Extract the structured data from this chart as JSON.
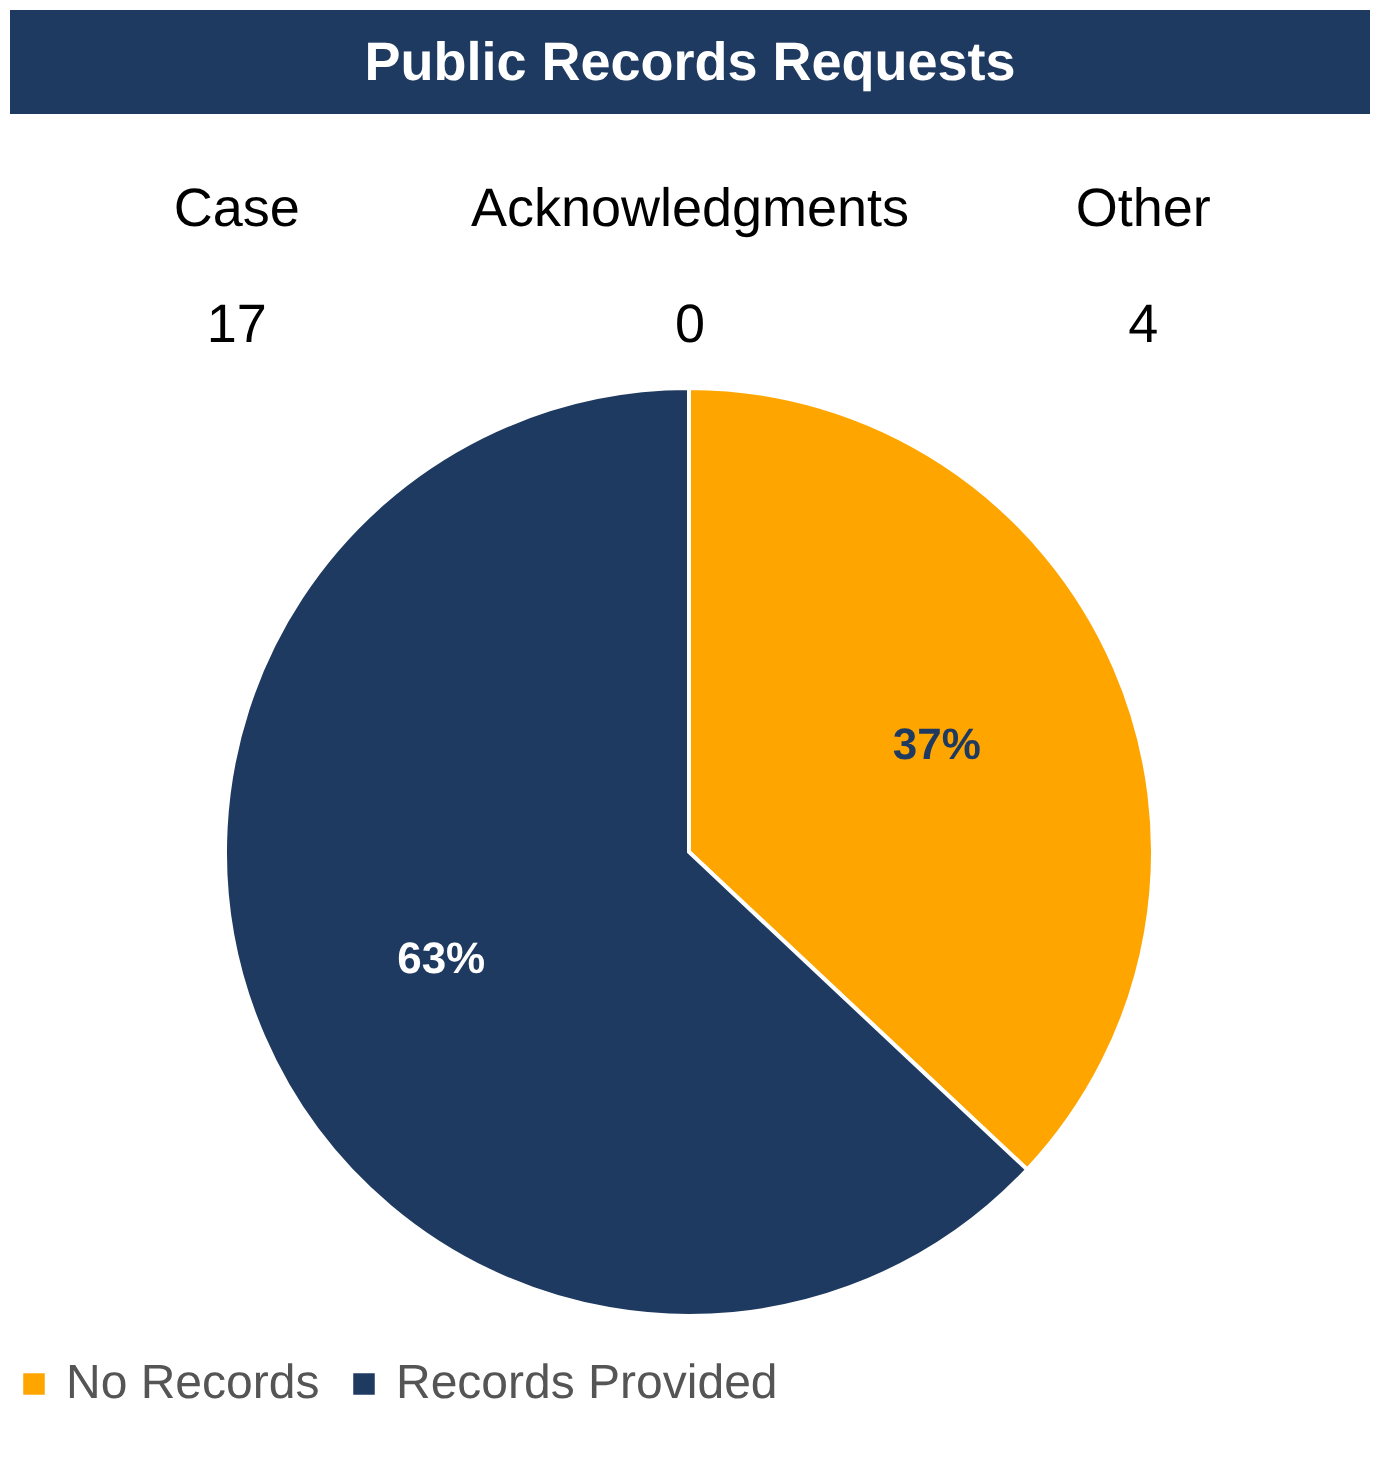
{
  "chart_data": [
    {
      "type": "other",
      "title": "Public Records Requests",
      "color": "#1f3a60",
      "categories": [
        "Case",
        "Acknowledgments",
        "Other"
      ],
      "values": [
        17,
        0,
        4
      ],
      "data_labels": true
    },
    {
      "type": "pie",
      "categories": [
        "No Records",
        "Records Provided"
      ],
      "values": [
        37,
        63
      ],
      "colors": [
        "#ffa500",
        "#1f3a60"
      ],
      "value_labels": [
        "37%",
        "63%"
      ],
      "legend": "bottom"
    }
  ]
}
